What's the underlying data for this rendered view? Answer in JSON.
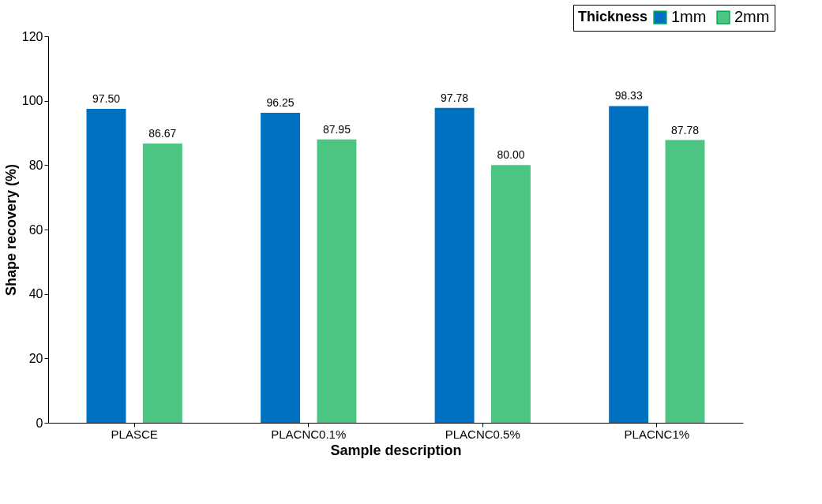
{
  "chart_data": {
    "type": "bar",
    "xlabel": "Sample description",
    "ylabel": "Shape recovery (%)",
    "legend_title": "Thickness",
    "categories": [
      "PLASCE",
      "PLACNC0.1%",
      "PLACNC0.5%",
      "PLACNC1%"
    ],
    "series": [
      {
        "name": "1mm",
        "color": "#0070c0",
        "values": [
          97.5,
          96.25,
          97.78,
          98.33
        ]
      },
      {
        "name": "2mm",
        "color": "#4cc582",
        "values": [
          86.67,
          87.95,
          80.0,
          87.78
        ]
      }
    ],
    "value_labels": [
      [
        "97.50",
        "96.25",
        "97.78",
        "98.33"
      ],
      [
        "86.67",
        "87.95",
        "80.00",
        "87.78"
      ]
    ],
    "ylim": [
      0,
      120
    ],
    "yticks": [
      0,
      20,
      40,
      60,
      80,
      100,
      120
    ],
    "grid": false,
    "legend": "top right"
  }
}
